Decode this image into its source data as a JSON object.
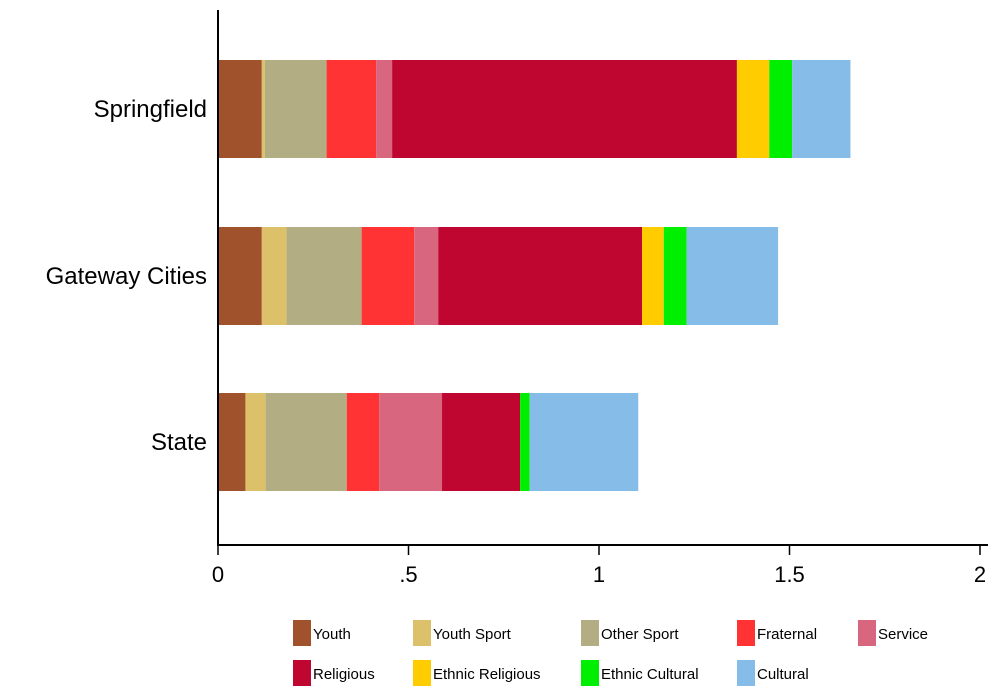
{
  "chart_data": {
    "type": "bar",
    "orientation": "horizontal",
    "stacked": true,
    "title": "",
    "xlabel": "",
    "ylabel": "",
    "xlim": [
      0,
      2
    ],
    "x_ticks": [
      0,
      0.5,
      1,
      1.5,
      2
    ],
    "x_tick_labels": [
      "0",
      ".5",
      "1",
      "1.5",
      "2"
    ],
    "categories": [
      "Springfield",
      "Gateway Cities",
      "State"
    ],
    "series": [
      {
        "name": "Youth",
        "color": "#A0522D",
        "values": [
          0.115,
          0.115,
          0.072
        ]
      },
      {
        "name": "Youth Sport",
        "color": "#DCC06A",
        "values": [
          0.008,
          0.065,
          0.053
        ]
      },
      {
        "name": "Other Sport",
        "color": "#B2AD82",
        "values": [
          0.162,
          0.197,
          0.213
        ]
      },
      {
        "name": "Fraternal",
        "color": "#FF3333",
        "values": [
          0.13,
          0.138,
          0.085
        ]
      },
      {
        "name": "Service",
        "color": "#D9667F",
        "values": [
          0.042,
          0.063,
          0.165
        ]
      },
      {
        "name": "Religious",
        "color": "#BF0630",
        "values": [
          0.905,
          0.535,
          0.205
        ]
      },
      {
        "name": "Ethnic Religious",
        "color": "#FFCC00",
        "values": [
          0.085,
          0.057,
          0.0
        ]
      },
      {
        "name": "Ethnic Cultural",
        "color": "#00EE00",
        "values": [
          0.06,
          0.06,
          0.025
        ]
      },
      {
        "name": "Cultural",
        "color": "#85BCE8",
        "values": [
          0.153,
          0.24,
          0.285
        ]
      }
    ],
    "legend_position": "bottom",
    "grid": false
  }
}
